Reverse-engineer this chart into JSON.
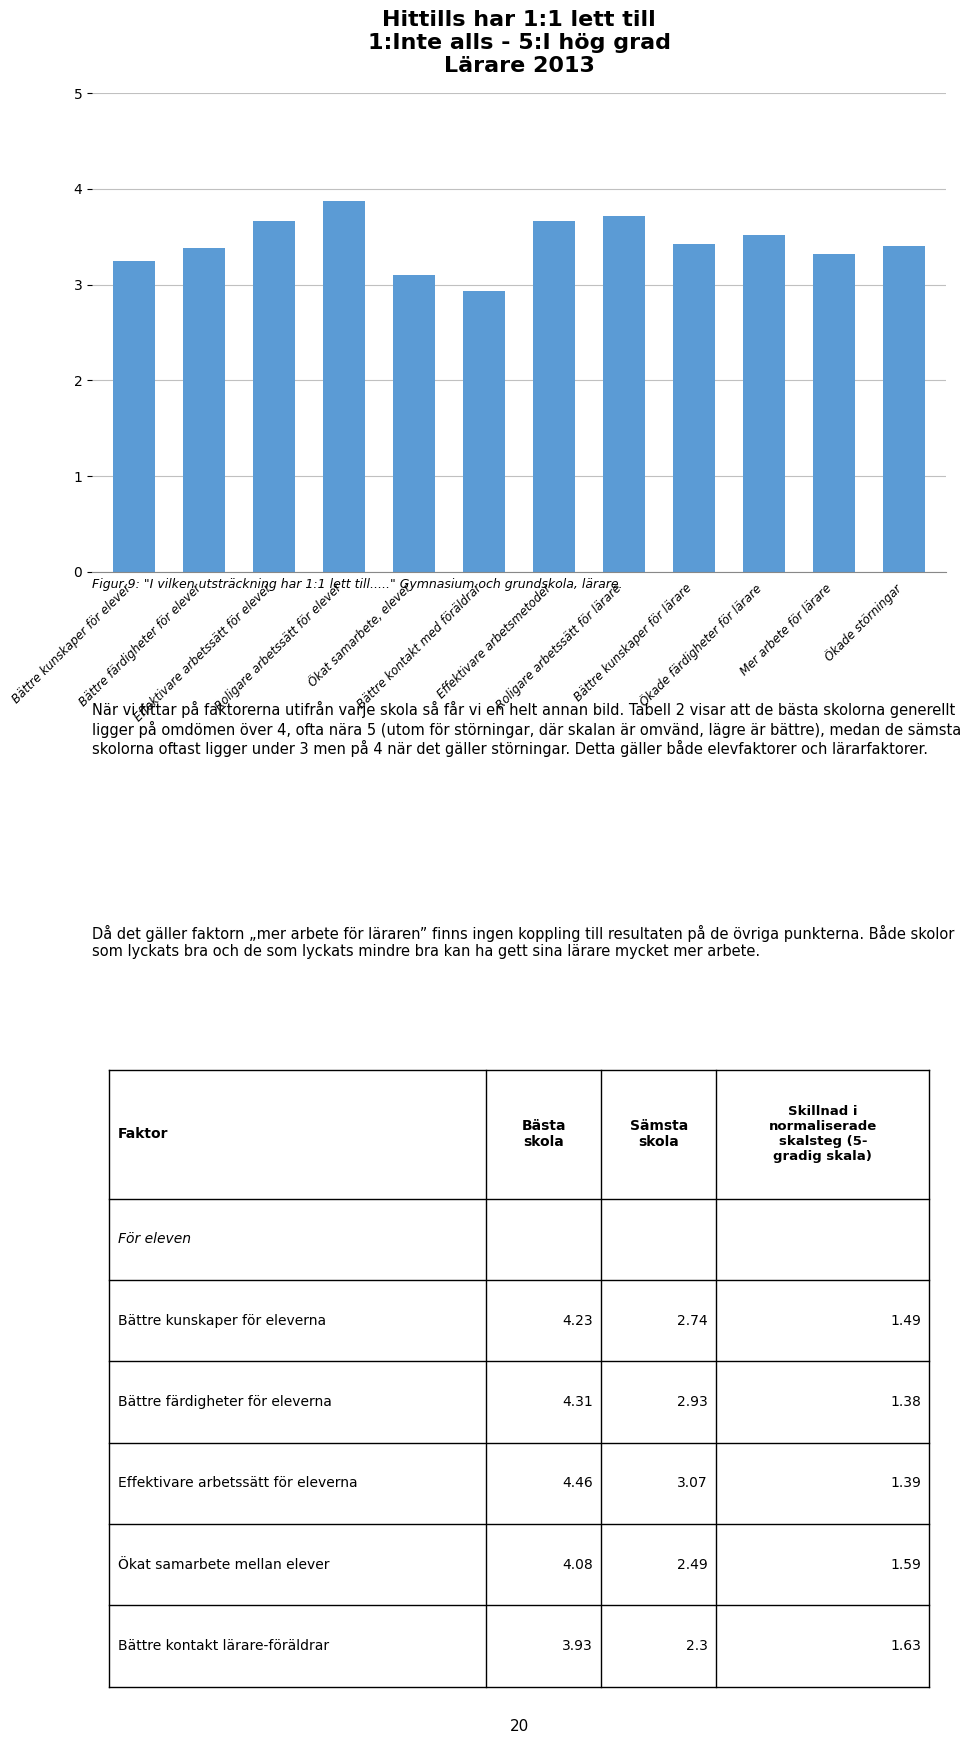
{
  "title": "Hittills har 1:1 lett till\n1:Inte alls - 5:I hög grad\nLärare 2013",
  "bar_values": [
    3.25,
    3.38,
    3.66,
    3.87,
    3.1,
    2.93,
    3.67,
    3.72,
    3.42,
    3.52,
    3.32,
    3.4
  ],
  "bar_labels": [
    "Bättre kunskaper för elever",
    "Bättre färdigheter för elever",
    "Effektivare arbetssätt för elever",
    "Roligare arbetssätt för elever",
    "Ökat samarbete, elever",
    "Bättre kontakt med föräldrar",
    "Effektivare arbetsmetoder",
    "Roligare arbetssätt för lärare",
    "Bättre kunskaper för lärare",
    "Ökade färdigheter för lärare",
    "Mer arbete för lärare",
    "Ökade störningar"
  ],
  "bar_color": "#5B9BD5",
  "ylim": [
    0,
    5
  ],
  "yticks": [
    0,
    1,
    2,
    3,
    4,
    5
  ],
  "figcaption": "Figur 9: \"I vilken utsträckning har 1:1 lett till.....\" Gymnasium och grundskola, lärare.",
  "paragraph1": "När vi tittar på faktorerna utifrån varje skola så får vi en helt annan bild. Tabell 2 visar att de bästa skolorna generellt ligger på omdömen över 4, ofta nära 5 (utom för störningar, där skalan är omvänd, lägre är bättre), medan de sämsta skolorna oftast ligger under 3 men på 4 när det gäller störningar. Detta gäller både elevfaktorer och lärarfaktorer.",
  "paragraph2": "Då det gäller faktorn „mer arbete för läraren” finns ingen koppling till resultaten på de övriga punkterna. Både skolor som lyckats bra och de som lyckats mindre bra kan ha gett sina lärare mycket mer arbete.",
  "table_headers": [
    "Faktor",
    "Bästa\nskola",
    "Sämsta\nskola",
    "Skillnad i\nnormaliserade\nskalsteg (5-\ngradig skala)"
  ],
  "table_section_label": "För eleven",
  "table_rows": [
    [
      "Bättre kunskaper för eleverna",
      "4.23",
      "2.74",
      "1.49"
    ],
    [
      "Bättre färdigheter för eleverna",
      "4.31",
      "2.93",
      "1.38"
    ],
    [
      "Effektivare arbetssätt för eleverna",
      "4.46",
      "3.07",
      "1.39"
    ],
    [
      "Ökat samarbete mellan elever",
      "4.08",
      "2.49",
      "1.59"
    ],
    [
      "Bättre kontakt lärare-föräldrar",
      "3.93",
      "2.3",
      "1.63"
    ]
  ],
  "page_number": "20",
  "background_color": "#FFFFFF",
  "text_color": "#000000",
  "grid_color": "#C0C0C0"
}
